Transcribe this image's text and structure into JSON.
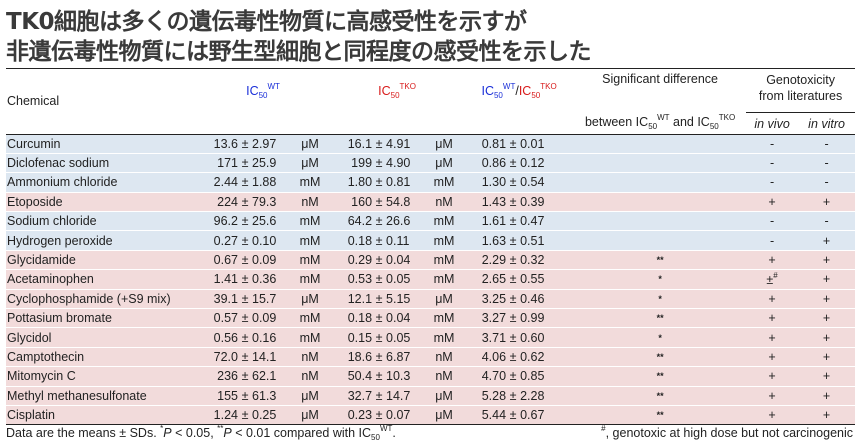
{
  "title_line1": "TK0細胞は多くの遺伝毒性物質に高感受性を示すが",
  "title_line2": "非遺伝毒性物質には野生型細胞と同程度の感受性を示した",
  "header": {
    "chemical": "Chemical",
    "ic": "IC",
    "sub50": "50",
    "wt": "WT",
    "tko": "TKO",
    "slash": "/",
    "sig_line1": "Significant difference",
    "sig_line2_a": "between IC",
    "sig_line2_and": " and IC",
    "genotox_line1": "Genotoxicity",
    "genotox_line2": "from literatures",
    "in_vivo": "in vivo",
    "in_vitro": "in vitro"
  },
  "pm": "±",
  "colors": {
    "wt": "#1a2fd8",
    "tko": "#d81a1a",
    "blue_row": "#dde7f1",
    "pink_row": "#f2dbdb"
  },
  "rows": [
    {
      "name": "Curcumin",
      "wt": "13.6",
      "wt_sd": "2.97",
      "wt_u": "μM",
      "tko": "16.1",
      "tko_sd": "4.91",
      "tko_u": "μM",
      "ratio": "0.81",
      "ratio_sd": "0.01",
      "sig": "",
      "vivo": "-",
      "vitro": "-",
      "shade": "blue"
    },
    {
      "name": "Diclofenac sodium",
      "wt": "171",
      "wt_sd": "25.9",
      "wt_u": "μM",
      "tko": "199",
      "tko_sd": "4.90",
      "tko_u": "μM",
      "ratio": "0.86",
      "ratio_sd": "0.12",
      "sig": "",
      "vivo": "-",
      "vitro": "-",
      "shade": "blue"
    },
    {
      "name": "Ammonium chloride",
      "wt": "2.44",
      "wt_sd": "1.88",
      "wt_u": "mM",
      "tko": "1.80",
      "tko_sd": "0.81",
      "tko_u": "mM",
      "ratio": "1.30",
      "ratio_sd": "0.54",
      "sig": "",
      "vivo": "-",
      "vitro": "-",
      "shade": "blue"
    },
    {
      "name": "Etoposide",
      "wt": "224",
      "wt_sd": "79.3",
      "wt_u": "nM",
      "tko": "160",
      "tko_sd": "54.8",
      "tko_u": "nM",
      "ratio": "1.43",
      "ratio_sd": "0.39",
      "sig": "",
      "vivo": "+",
      "vitro": "+",
      "shade": "pink"
    },
    {
      "name": "Sodium chloride",
      "wt": "96.2",
      "wt_sd": "25.6",
      "wt_u": "mM",
      "tko": "64.2",
      "tko_sd": "26.6",
      "tko_u": "mM",
      "ratio": "1.61",
      "ratio_sd": "0.47",
      "sig": "",
      "vivo": "-",
      "vitro": "-",
      "shade": "blue"
    },
    {
      "name": "Hydrogen peroxide",
      "wt": "0.27",
      "wt_sd": "0.10",
      "wt_u": "mM",
      "tko": "0.18",
      "tko_sd": "0.11",
      "tko_u": "mM",
      "ratio": "1.63",
      "ratio_sd": "0.51",
      "sig": "",
      "vivo": "-",
      "vitro": "+",
      "shade": "blue"
    },
    {
      "name": "Glycidamide",
      "wt": "0.67",
      "wt_sd": "0.09",
      "wt_u": "mM",
      "tko": "0.29",
      "tko_sd": "0.04",
      "tko_u": "mM",
      "ratio": "2.29",
      "ratio_sd": "0.32",
      "sig": "**",
      "vivo": "+",
      "vitro": "+",
      "shade": "pink"
    },
    {
      "name": "Acetaminophen",
      "wt": "1.41",
      "wt_sd": "0.36",
      "wt_u": "mM",
      "tko": "0.53",
      "tko_sd": "0.05",
      "tko_u": "mM",
      "ratio": "2.65",
      "ratio_sd": "0.55",
      "sig": "*",
      "vivo": "±",
      "vivo_mark": "#",
      "vitro": "+",
      "shade": "pink"
    },
    {
      "name": "Cyclophosphamide (+S9 mix)",
      "wt": "39.1",
      "wt_sd": "15.7",
      "wt_u": "μM",
      "tko": "12.1",
      "tko_sd": "5.15",
      "tko_u": "μM",
      "ratio": "3.25",
      "ratio_sd": "0.46",
      "sig": "*",
      "vivo": "+",
      "vitro": "+",
      "shade": "pink"
    },
    {
      "name": "Pottasium bromate",
      "wt": "0.57",
      "wt_sd": "0.09",
      "wt_u": "mM",
      "tko": "0.18",
      "tko_sd": "0.04",
      "tko_u": "mM",
      "ratio": "3.27",
      "ratio_sd": "0.99",
      "sig": "**",
      "vivo": "+",
      "vitro": "+",
      "shade": "pink"
    },
    {
      "name": "Glycidol",
      "wt": "0.56",
      "wt_sd": "0.16",
      "wt_u": "mM",
      "tko": "0.15",
      "tko_sd": "0.05",
      "tko_u": "mM",
      "ratio": "3.71",
      "ratio_sd": "0.60",
      "sig": "*",
      "vivo": "+",
      "vitro": "+",
      "shade": "pink"
    },
    {
      "name": "Camptothecin",
      "wt": "72.0",
      "wt_sd": "14.1",
      "wt_u": "nM",
      "tko": "18.6",
      "tko_sd": "6.87",
      "tko_u": "nM",
      "ratio": "4.06",
      "ratio_sd": "0.62",
      "sig": "**",
      "vivo": "+",
      "vitro": "+",
      "shade": "pink"
    },
    {
      "name": "Mitomycin C",
      "wt": "236",
      "wt_sd": "62.1",
      "wt_u": "nM",
      "tko": "50.4",
      "tko_sd": "10.3",
      "tko_u": "nM",
      "ratio": "4.70",
      "ratio_sd": "0.85",
      "sig": "**",
      "vivo": "+",
      "vitro": "+",
      "shade": "pink"
    },
    {
      "name": "Methyl methanesulfonate",
      "wt": "155",
      "wt_sd": "61.3",
      "wt_u": "μM",
      "tko": "32.7",
      "tko_sd": "14.7",
      "tko_u": "μM",
      "ratio": "5.28",
      "ratio_sd": "2.28",
      "sig": "**",
      "vivo": "+",
      "vitro": "+",
      "shade": "pink"
    },
    {
      "name": "Cisplatin",
      "wt": "1.24",
      "wt_sd": "0.25",
      "wt_u": "μM",
      "tko": "0.23",
      "tko_sd": "0.07",
      "tko_u": "μM",
      "ratio": "5.44",
      "ratio_sd": "0.67",
      "sig": "**",
      "vivo": "+",
      "vitro": "+",
      "shade": "pink"
    }
  ],
  "footnote_left": {
    "a": "Data are the means ± SDs. ",
    "star1": "*",
    "p1": "P",
    "b": " < 0.05, ",
    "star2": "**",
    "p2": "P",
    "c": " < 0.01 compared with IC",
    "sub": "50",
    "sup": "WT",
    "d": "."
  },
  "footnote_right": {
    "mark": "#",
    "text": ", genotoxic at high dose but not carcinogenic"
  }
}
